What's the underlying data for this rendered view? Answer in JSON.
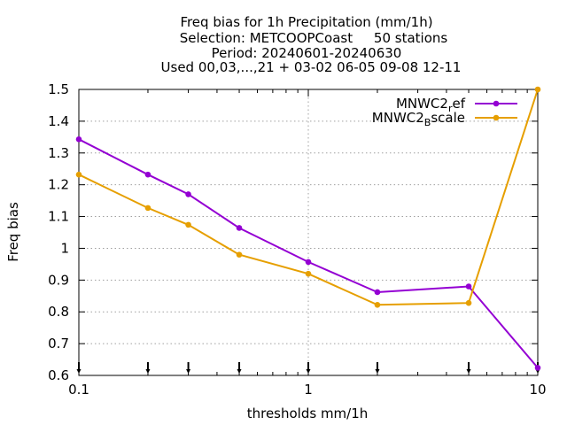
{
  "chart_data": {
    "type": "line",
    "title_lines": [
      "Freq bias  for 1h Precipitation (mm/1h)",
      "Selection: METCOOPCoast     50 stations",
      "Period: 20240601-20240630",
      "Used 00,03,...,21 + 03-02 06-05 09-08 12-11"
    ],
    "xlabel": "thresholds mm/1h",
    "ylabel": "Freq bias",
    "x_scale": "log",
    "xlim": [
      0.1,
      10
    ],
    "ylim": [
      0.6,
      1.5
    ],
    "x_ticks": [
      0.1,
      1,
      10
    ],
    "x_tick_labels": [
      "0.1",
      "1",
      "10"
    ],
    "y_ticks": [
      0.6,
      0.7,
      0.8,
      0.9,
      1.0,
      1.1,
      1.2,
      1.3,
      1.4,
      1.5
    ],
    "y_tick_labels": [
      "0.6",
      "0.7",
      "0.8",
      "0.9",
      "1",
      "1.1",
      "1.2",
      "1.3",
      "1.4",
      "1.5"
    ],
    "grid": true,
    "legend_position": "top-right",
    "x": [
      0.1,
      0.2,
      0.3,
      0.5,
      1,
      2,
      5,
      10
    ],
    "series": [
      {
        "name_base": "MNWC2",
        "name_sub": "r",
        "name_rest": "ef",
        "color": "#9400d3",
        "values": [
          1.343,
          1.232,
          1.17,
          1.064,
          0.957,
          0.862,
          0.88,
          0.624
        ]
      },
      {
        "name_base": "MNWC2",
        "name_sub": "B",
        "name_rest": "scale",
        "color": "#e69f00",
        "values": [
          1.232,
          1.127,
          1.074,
          0.98,
          0.92,
          0.822,
          0.828,
          1.5
        ]
      }
    ],
    "observation_markers_x": [
      0.1,
      0.2,
      0.3,
      0.5,
      1,
      2,
      5,
      10
    ]
  }
}
